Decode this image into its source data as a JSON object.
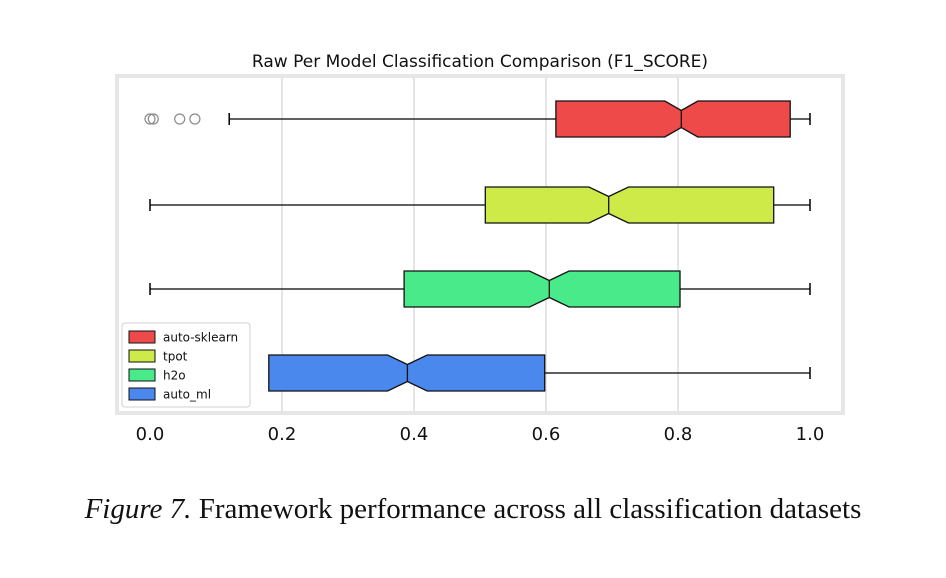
{
  "chart_data": {
    "type": "boxplot",
    "orientation": "horizontal",
    "notched": true,
    "title": "Raw Per Model Classification Comparison (F1_SCORE)",
    "xlim": [
      -0.05,
      1.05
    ],
    "xticks": [
      0.0,
      0.2,
      0.4,
      0.6,
      0.8,
      1.0
    ],
    "xtick_labels": [
      "0.0",
      "0.2",
      "0.4",
      "0.6",
      "0.8",
      "1.0"
    ],
    "grid": "vertical",
    "legend_position": "lower-left",
    "series": [
      {
        "name": "auto-sklearn",
        "color": "#ef4a4a",
        "whisker_low": 0.12,
        "q1": 0.615,
        "median": 0.805,
        "q3": 0.97,
        "whisker_high": 1.0,
        "notch_low": 0.78,
        "notch_high": 0.83,
        "outliers": [
          0.0,
          0.005,
          0.045,
          0.068
        ]
      },
      {
        "name": "tpot",
        "color": "#cdea48",
        "whisker_low": 0.0,
        "q1": 0.508,
        "median": 0.695,
        "q3": 0.945,
        "whisker_high": 1.0,
        "notch_low": 0.665,
        "notch_high": 0.725,
        "outliers": []
      },
      {
        "name": "h2o",
        "color": "#48ea8a",
        "whisker_low": 0.0,
        "q1": 0.385,
        "median": 0.605,
        "q3": 0.803,
        "whisker_high": 1.0,
        "notch_low": 0.575,
        "notch_high": 0.635,
        "outliers": []
      },
      {
        "name": "auto_ml",
        "color": "#4a88ee",
        "whisker_low": 0.18,
        "q1": 0.18,
        "median": 0.39,
        "q3": 0.598,
        "whisker_high": 1.0,
        "notch_low": 0.36,
        "notch_high": 0.42,
        "outliers": []
      }
    ]
  },
  "caption": {
    "figure_label": "Figure 7.",
    "text": "Framework performance across all classification datasets"
  }
}
